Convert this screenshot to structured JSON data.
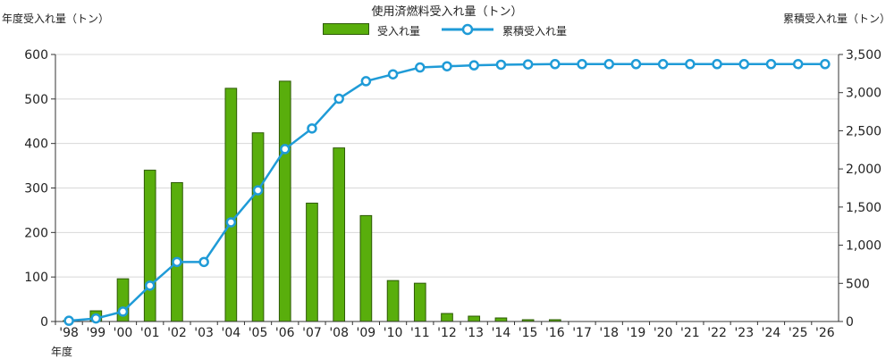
{
  "chart_data": {
    "type": "bar+line",
    "title": "使用済燃料受入れ量（トン）",
    "xlabel": "年度",
    "ylabel_left": "年度受入れ量（トン）",
    "ylabel_right": "累積受入れ量（トン）",
    "categories": [
      "'98",
      "'99",
      "'00",
      "'01",
      "'02",
      "'03",
      "'04",
      "'05",
      "'06",
      "'07",
      "'08",
      "'09",
      "'10",
      "'11",
      "'12",
      "'13",
      "'14",
      "'15",
      "'16",
      "'17",
      "'18",
      "'19",
      "'20",
      "'21",
      "'22",
      "'23",
      "'24",
      "'25",
      "'26"
    ],
    "ylim_left": [
      0,
      600
    ],
    "yticks_left": [
      "0",
      "100",
      "200",
      "300",
      "400",
      "500",
      "600"
    ],
    "ylim_right": [
      0,
      3500
    ],
    "yticks_right": [
      "0",
      "500",
      "1,000",
      "1,500",
      "2,000",
      "2,500",
      "3,000",
      "3,500"
    ],
    "grid": true,
    "legend_position": "top-center",
    "series": [
      {
        "name": "受入れ量",
        "type": "bar",
        "axis": "left",
        "color": "#59ae0c",
        "values": [
          2,
          24,
          96,
          340,
          312,
          0,
          524,
          424,
          540,
          266,
          390,
          238,
          92,
          86,
          18,
          12,
          8,
          4,
          4,
          0,
          0,
          0,
          0,
          0,
          0,
          0,
          0,
          0,
          0
        ]
      },
      {
        "name": "累積受入れ量",
        "type": "line",
        "axis": "right",
        "color": "#1f9bd7",
        "values": [
          10,
          40,
          130,
          470,
          780,
          780,
          1300,
          1720,
          2260,
          2530,
          2920,
          3150,
          3240,
          3330,
          3345,
          3358,
          3366,
          3370,
          3374,
          3374,
          3374,
          3374,
          3374,
          3374,
          3374,
          3374,
          3374,
          3374,
          3374
        ]
      }
    ]
  }
}
